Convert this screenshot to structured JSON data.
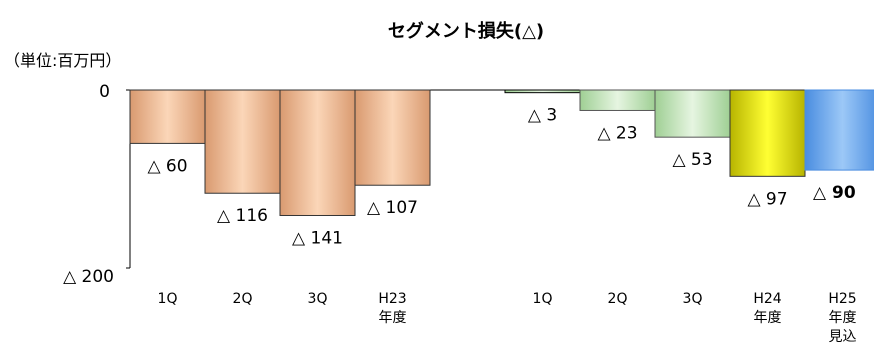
{
  "chart_data": {
    "type": "bar",
    "title": "セグメント損失(△)",
    "unit_label": "（単位:百万円）",
    "ylim": [
      0,
      200
    ],
    "y_ticks": [
      "0",
      "△ 200"
    ],
    "inverted_y": true,
    "grid": false,
    "legend": "none",
    "groups": [
      {
        "categories": [
          {
            "lines": [
              "1Q"
            ]
          },
          {
            "lines": [
              "2Q"
            ]
          },
          {
            "lines": [
              "3Q"
            ]
          },
          {
            "lines": [
              "H23",
              "年度"
            ]
          }
        ],
        "values": [
          60,
          116,
          141,
          107
        ],
        "labels": [
          "△ 60",
          "△ 116",
          "△ 141",
          "△ 107"
        ]
      },
      {
        "categories": [
          {
            "lines": [
              "1Q"
            ]
          },
          {
            "lines": [
              "2Q"
            ]
          },
          {
            "lines": [
              "3Q"
            ]
          },
          {
            "lines": [
              "H24",
              "年度"
            ]
          },
          {
            "lines": [
              "H25",
              "年度",
              "見込"
            ]
          }
        ],
        "values": [
          3,
          23,
          53,
          97,
          90
        ],
        "labels": [
          "△ 3",
          "△ 23",
          "△ 53",
          "△ 97",
          "△ 90"
        ]
      }
    ],
    "colors": {
      "fy23": "#f2bc96",
      "fy24_q1": "#c9e6c0",
      "fy24_q2": "#c9e6c0",
      "fy24_q3": "#c9e6c0",
      "fy24_annual": "#f0ee00",
      "fy25_forecast": "#5d9fe8"
    }
  }
}
